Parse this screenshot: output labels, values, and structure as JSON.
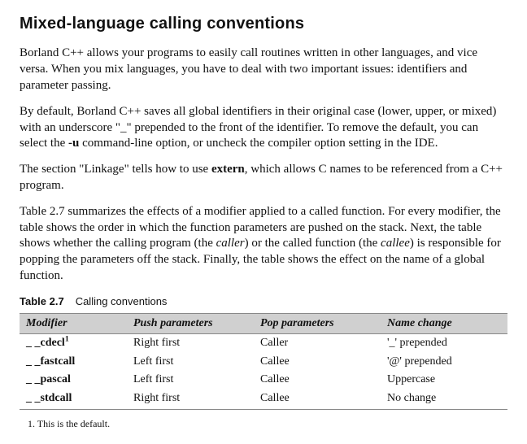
{
  "heading": "Mixed-language calling conventions",
  "para1_a": "Borland C++ allows your programs to easily call routines written in other languages, and vice versa. When you mix languages, you have to deal with two important issues: identifiers and parameter passing.",
  "para2_a": "By default, Borland C++ saves all global identifiers in their original case (lower, upper, or mixed) with an underscore \"_\" prepended to the front of the identifier. To remove the default, you can select the ",
  "para2_b": "-u",
  "para2_c": " command-line option, or uncheck the compiler option setting in the IDE.",
  "para3_a": "The section \"Linkage\" tells how to use ",
  "para3_b": "extern",
  "para3_c": ", which allows C names to be referenced from a C++ program.",
  "para4_a": "Table 2.7 summarizes the effects of a modifier applied to a called function. For every modifier, the table shows the order in which the function parameters are pushed on the stack. Next, the table shows whether the calling program (the ",
  "para4_b": "caller",
  "para4_c": ") or the called function (the ",
  "para4_d": "callee",
  "para4_e": ") is responsible for popping the parameters off the stack. Finally, the table shows the effect on the name of a global function.",
  "table": {
    "number": "Table 2.7",
    "title": "Calling conventions",
    "columns": [
      "Modifier",
      "Push parameters",
      "Pop parameters",
      "Name change"
    ],
    "rows": [
      {
        "modifier": "_ _cdecl",
        "sup": "1",
        "push": "Right first",
        "pop": "Caller",
        "name": "'_' prepended"
      },
      {
        "modifier": "_ _fastcall",
        "sup": "",
        "push": "Left first",
        "pop": "Callee",
        "name": "'@' prepended"
      },
      {
        "modifier": "_ _pascal",
        "sup": "",
        "push": "Left first",
        "pop": "Callee",
        "name": "Uppercase"
      },
      {
        "modifier": "_ _stdcall",
        "sup": "",
        "push": "Right first",
        "pop": "Callee",
        "name": "No change"
      }
    ]
  },
  "footnote": "1. This is the default."
}
